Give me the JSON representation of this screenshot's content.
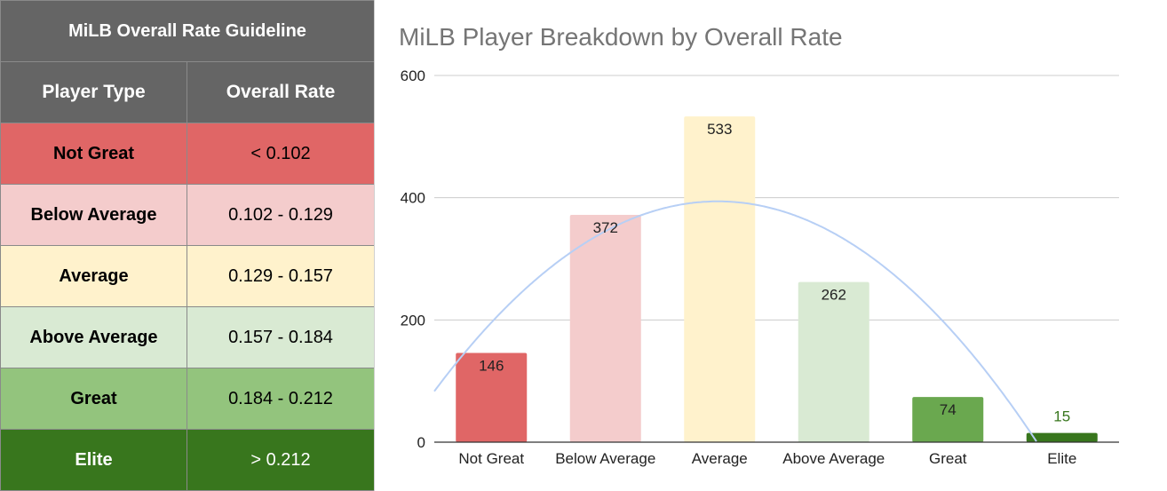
{
  "guideline": {
    "title": "MiLB Overall Rate Guideline",
    "columns": [
      "Player Type",
      "Overall Rate"
    ],
    "rows": [
      {
        "type": "Not Great",
        "rate": "< 0.102",
        "color": "#e06666",
        "text_color": "#000000"
      },
      {
        "type": "Below Average",
        "rate": "0.102 - 0.129",
        "color": "#f4cccc",
        "text_color": "#000000"
      },
      {
        "type": "Average",
        "rate": "0.129 - 0.157",
        "color": "#fff2cc",
        "text_color": "#000000"
      },
      {
        "type": "Above Average",
        "rate": "0.157 - 0.184",
        "color": "#d9ead3",
        "text_color": "#000000"
      },
      {
        "type": "Great",
        "rate": "0.184 - 0.212",
        "color": "#93c47d",
        "text_color": "#000000"
      },
      {
        "type": "Elite",
        "rate": "> 0.212",
        "color": "#38761d",
        "text_color": "#ffffff"
      }
    ],
    "header_color": "#656565"
  },
  "chart_data": {
    "type": "bar",
    "title": "MiLB Player Breakdown by Overall Rate",
    "xlabel": "",
    "ylabel": "",
    "categories": [
      "Not Great",
      "Below Average",
      "Average",
      "Above Average",
      "Great",
      "Elite"
    ],
    "values": [
      146,
      372,
      533,
      262,
      74,
      15
    ],
    "bar_colors": [
      "#e06666",
      "#f4cccc",
      "#fff2cc",
      "#d9ead3",
      "#6aa84f",
      "#38761d"
    ],
    "ylim": [
      0,
      600
    ],
    "yticks": [
      "0",
      "200",
      "400",
      "600"
    ],
    "grid": true,
    "data_labels": true,
    "trendline": {
      "type": "polynomial",
      "color": "#b7cff5"
    }
  }
}
